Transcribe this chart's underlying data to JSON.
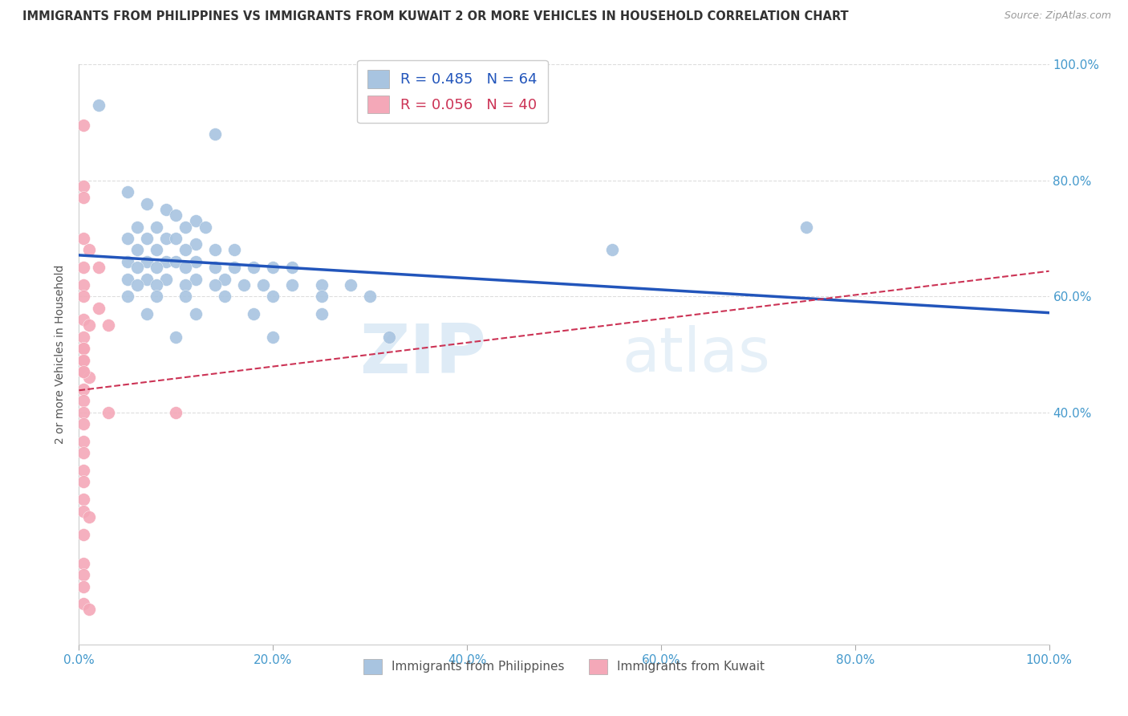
{
  "title": "IMMIGRANTS FROM PHILIPPINES VS IMMIGRANTS FROM KUWAIT 2 OR MORE VEHICLES IN HOUSEHOLD CORRELATION CHART",
  "source": "Source: ZipAtlas.com",
  "ylabel": "2 or more Vehicles in Household",
  "xmin": 0.0,
  "xmax": 1.0,
  "ymin": 0.0,
  "ymax": 1.0,
  "philippines_R": 0.485,
  "philippines_N": 64,
  "kuwait_R": 0.056,
  "kuwait_N": 40,
  "philippines_color": "#a8c4e0",
  "kuwait_color": "#f4a8b8",
  "philippines_line_color": "#2255bb",
  "kuwait_line_color": "#cc3355",
  "philippines_scatter": [
    [
      0.02,
      0.93
    ],
    [
      0.14,
      0.88
    ],
    [
      0.05,
      0.78
    ],
    [
      0.07,
      0.76
    ],
    [
      0.09,
      0.75
    ],
    [
      0.1,
      0.74
    ],
    [
      0.12,
      0.73
    ],
    [
      0.06,
      0.72
    ],
    [
      0.08,
      0.72
    ],
    [
      0.11,
      0.72
    ],
    [
      0.13,
      0.72
    ],
    [
      0.05,
      0.7
    ],
    [
      0.07,
      0.7
    ],
    [
      0.09,
      0.7
    ],
    [
      0.1,
      0.7
    ],
    [
      0.12,
      0.69
    ],
    [
      0.06,
      0.68
    ],
    [
      0.08,
      0.68
    ],
    [
      0.11,
      0.68
    ],
    [
      0.14,
      0.68
    ],
    [
      0.16,
      0.68
    ],
    [
      0.05,
      0.66
    ],
    [
      0.07,
      0.66
    ],
    [
      0.09,
      0.66
    ],
    [
      0.1,
      0.66
    ],
    [
      0.12,
      0.66
    ],
    [
      0.06,
      0.65
    ],
    [
      0.08,
      0.65
    ],
    [
      0.11,
      0.65
    ],
    [
      0.14,
      0.65
    ],
    [
      0.16,
      0.65
    ],
    [
      0.18,
      0.65
    ],
    [
      0.2,
      0.65
    ],
    [
      0.22,
      0.65
    ],
    [
      0.05,
      0.63
    ],
    [
      0.07,
      0.63
    ],
    [
      0.09,
      0.63
    ],
    [
      0.12,
      0.63
    ],
    [
      0.15,
      0.63
    ],
    [
      0.06,
      0.62
    ],
    [
      0.08,
      0.62
    ],
    [
      0.11,
      0.62
    ],
    [
      0.14,
      0.62
    ],
    [
      0.17,
      0.62
    ],
    [
      0.19,
      0.62
    ],
    [
      0.22,
      0.62
    ],
    [
      0.25,
      0.62
    ],
    [
      0.28,
      0.62
    ],
    [
      0.05,
      0.6
    ],
    [
      0.08,
      0.6
    ],
    [
      0.11,
      0.6
    ],
    [
      0.15,
      0.6
    ],
    [
      0.2,
      0.6
    ],
    [
      0.25,
      0.6
    ],
    [
      0.3,
      0.6
    ],
    [
      0.07,
      0.57
    ],
    [
      0.12,
      0.57
    ],
    [
      0.18,
      0.57
    ],
    [
      0.25,
      0.57
    ],
    [
      0.1,
      0.53
    ],
    [
      0.2,
      0.53
    ],
    [
      0.32,
      0.53
    ],
    [
      0.55,
      0.68
    ],
    [
      0.75,
      0.72
    ]
  ],
  "kuwait_scatter": [
    [
      0.005,
      0.895
    ],
    [
      0.005,
      0.79
    ],
    [
      0.005,
      0.77
    ],
    [
      0.005,
      0.7
    ],
    [
      0.01,
      0.68
    ],
    [
      0.005,
      0.65
    ],
    [
      0.02,
      0.65
    ],
    [
      0.005,
      0.62
    ],
    [
      0.005,
      0.6
    ],
    [
      0.02,
      0.58
    ],
    [
      0.005,
      0.56
    ],
    [
      0.01,
      0.55
    ],
    [
      0.03,
      0.55
    ],
    [
      0.005,
      0.53
    ],
    [
      0.005,
      0.51
    ],
    [
      0.005,
      0.49
    ],
    [
      0.005,
      0.47
    ],
    [
      0.01,
      0.46
    ],
    [
      0.005,
      0.44
    ],
    [
      0.005,
      0.42
    ],
    [
      0.005,
      0.4
    ],
    [
      0.005,
      0.38
    ],
    [
      0.005,
      0.35
    ],
    [
      0.005,
      0.33
    ],
    [
      0.005,
      0.3
    ],
    [
      0.005,
      0.28
    ],
    [
      0.005,
      0.25
    ],
    [
      0.005,
      0.23
    ],
    [
      0.01,
      0.22
    ],
    [
      0.005,
      0.19
    ],
    [
      0.005,
      0.14
    ],
    [
      0.005,
      0.12
    ],
    [
      0.005,
      0.07
    ],
    [
      0.01,
      0.06
    ],
    [
      0.03,
      0.4
    ],
    [
      0.1,
      0.4
    ],
    [
      0.005,
      0.51
    ],
    [
      0.005,
      0.49
    ],
    [
      0.005,
      0.47
    ],
    [
      0.005,
      0.1
    ]
  ],
  "watermark_zip": "ZIP",
  "watermark_atlas": "atlas",
  "grid_color": "#dddddd",
  "background_color": "#ffffff"
}
